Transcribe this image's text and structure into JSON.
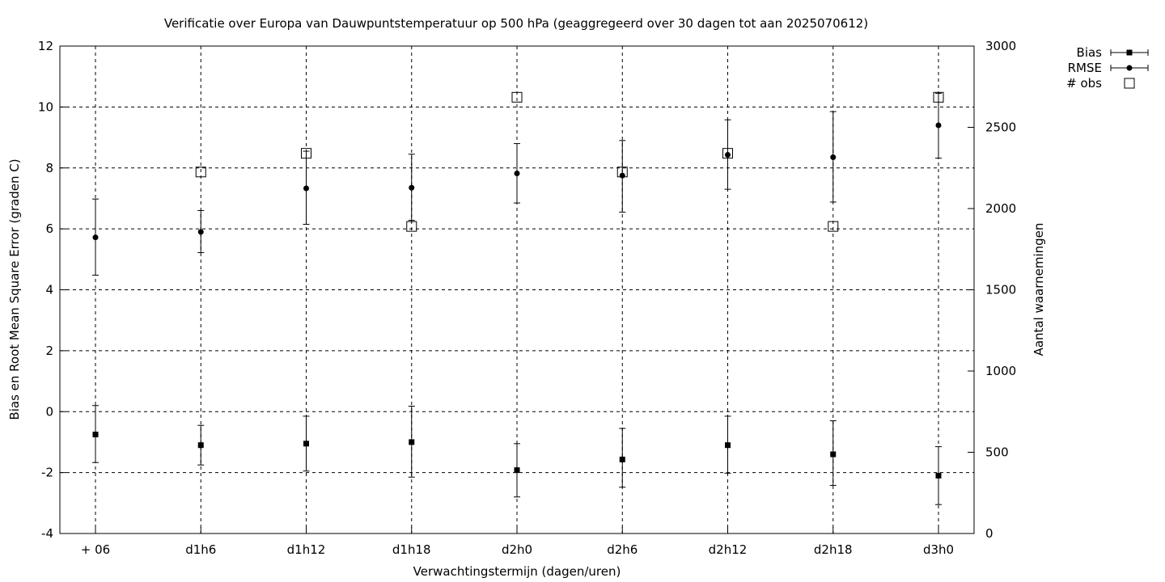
{
  "chart_data": {
    "type": "scatter",
    "title": "Verificatie over Europa van Dauwpuntstemperatuur op 500 hPa (geaggregeerd over 30 dagen tot aan 2025070612)",
    "xlabel": "Verwachtingstermijn (dagen/uren)",
    "ylabel": "Bias en Root Mean Square Error (graden C)",
    "y2label": "Aantal waarnemingen",
    "categories": [
      "+ 06",
      "d1h6",
      "d1h12",
      "d1h18",
      "d2h0",
      "d2h6",
      "d2h12",
      "d2h18",
      "d3h0"
    ],
    "ylim": [
      -4,
      12
    ],
    "yticks": [
      "-4",
      "-2",
      "0",
      "2",
      "4",
      "6",
      "8",
      "10",
      "12"
    ],
    "y2lim": [
      0,
      3000
    ],
    "y2ticks": [
      "0",
      "500",
      "1000",
      "1500",
      "2000",
      "2500",
      "3000"
    ],
    "grid": true,
    "legend_position": "top-right outside",
    "series": [
      {
        "name": "Bias",
        "marker": "square",
        "axis": "y",
        "values": [
          -0.75,
          -1.1,
          -1.05,
          -1.0,
          -1.92,
          -1.57,
          -1.1,
          -1.4,
          -2.1
        ],
        "err_low": [
          -1.67,
          -1.75,
          -1.95,
          -2.15,
          -2.8,
          -2.48,
          -2.02,
          -2.42,
          -3.05
        ],
        "err_high": [
          0.2,
          -0.45,
          -0.15,
          0.18,
          -1.05,
          -0.55,
          -0.15,
          -0.3,
          -1.15
        ]
      },
      {
        "name": "RMSE",
        "marker": "circle",
        "axis": "y",
        "values": [
          5.72,
          5.9,
          7.33,
          7.35,
          7.82,
          7.75,
          8.43,
          8.35,
          9.4
        ],
        "err_low": [
          4.48,
          5.22,
          6.15,
          6.28,
          6.85,
          6.55,
          7.3,
          6.88,
          8.32
        ],
        "err_high": [
          6.98,
          6.6,
          8.55,
          8.45,
          8.8,
          8.9,
          9.58,
          9.85,
          10.45
        ]
      },
      {
        "name": "# obs",
        "marker": "open-square",
        "axis": "y2",
        "values": [
          null,
          2225,
          2340,
          1890,
          2685,
          2225,
          2340,
          1890,
          2685
        ]
      }
    ]
  }
}
